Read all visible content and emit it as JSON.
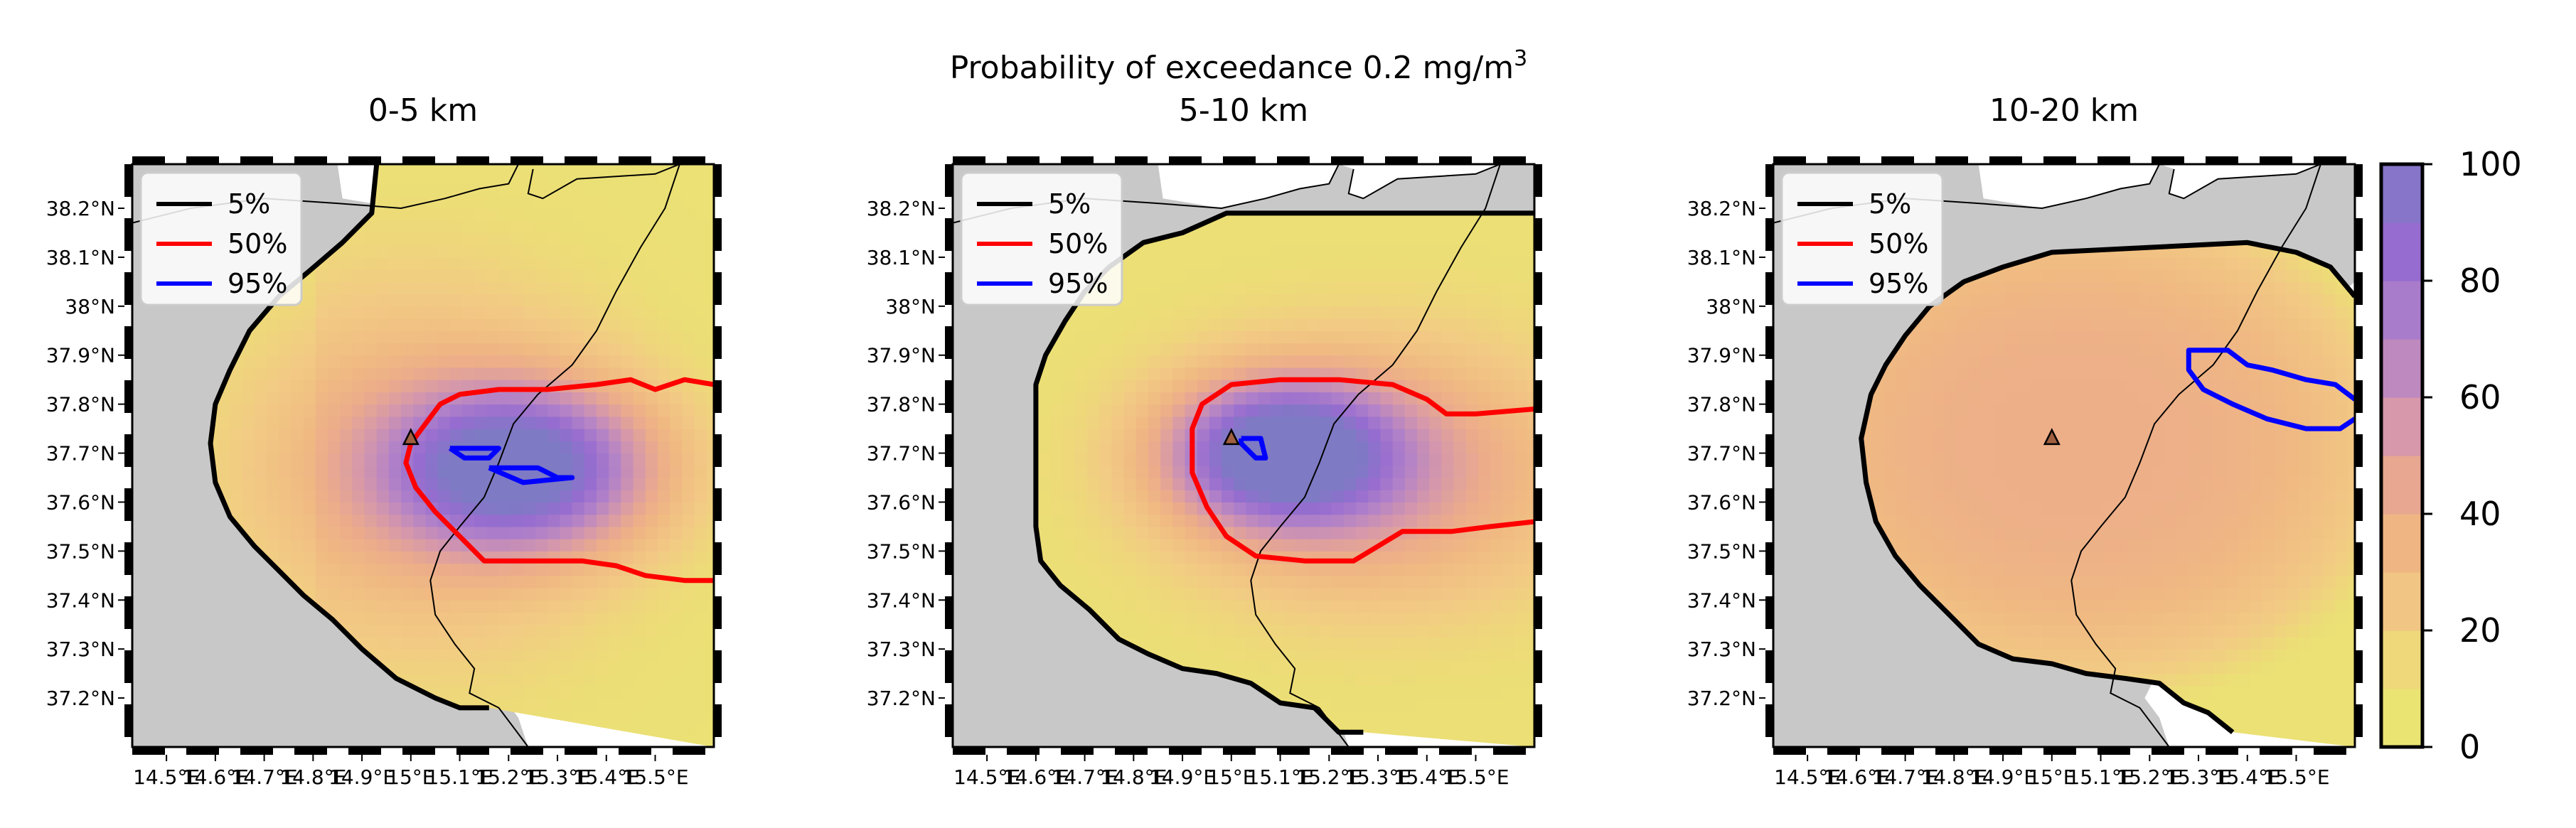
{
  "figure": {
    "suptitle_text": "Probability of exceedance 0.2 mg/m",
    "suptitle_superscript": "3"
  },
  "chart_data": [
    {
      "type": "heatmap",
      "title": "0-5 km",
      "x_ticks": [
        "14.5°E",
        "14.6°E",
        "14.7°E",
        "14.8°E",
        "14.9°E",
        "15°E",
        "15.1°E",
        "15.2°E",
        "15.3°E",
        "15.4°E",
        "15.5°E"
      ],
      "y_ticks": [
        "38.2°N",
        "38.1°N",
        "38°N",
        "37.9°N",
        "37.8°N",
        "37.7°N",
        "37.6°N",
        "37.5°N",
        "37.4°N",
        "37.3°N",
        "37.2°N"
      ],
      "xlim": [
        14.43,
        15.62
      ],
      "ylim": [
        37.1,
        38.29
      ],
      "vent": {
        "lon": 15.0,
        "lat": 37.73
      },
      "peak": {
        "lon": 15.18,
        "lat": 37.68,
        "value": 90
      },
      "legend": [
        "5%",
        "50%",
        "95%"
      ],
      "contours": {
        "5%": [
          [
            14.93,
            38.29
          ],
          [
            14.92,
            38.19
          ],
          [
            14.86,
            38.13
          ],
          [
            14.79,
            38.07
          ],
          [
            14.73,
            38.02
          ],
          [
            14.67,
            37.95
          ],
          [
            14.63,
            37.87
          ],
          [
            14.6,
            37.8
          ],
          [
            14.59,
            37.72
          ],
          [
            14.6,
            37.64
          ],
          [
            14.63,
            37.57
          ],
          [
            14.68,
            37.51
          ],
          [
            14.73,
            37.46
          ],
          [
            14.78,
            37.41
          ],
          [
            14.84,
            37.36
          ],
          [
            14.9,
            37.3
          ],
          [
            14.97,
            37.24
          ],
          [
            15.05,
            37.2
          ],
          [
            15.1,
            37.18
          ],
          [
            15.16,
            37.18
          ]
        ],
        "50%": [
          [
            15.62,
            37.84
          ],
          [
            15.56,
            37.85
          ],
          [
            15.5,
            37.83
          ],
          [
            15.45,
            37.85
          ],
          [
            15.38,
            37.84
          ],
          [
            15.28,
            37.83
          ],
          [
            15.18,
            37.83
          ],
          [
            15.1,
            37.82
          ],
          [
            15.06,
            37.8
          ],
          [
            15.03,
            37.76
          ],
          [
            15.0,
            37.72
          ],
          [
            14.99,
            37.68
          ],
          [
            15.01,
            37.63
          ],
          [
            15.05,
            37.58
          ],
          [
            15.1,
            37.53
          ],
          [
            15.15,
            37.48
          ],
          [
            15.25,
            37.48
          ],
          [
            15.35,
            37.48
          ],
          [
            15.42,
            37.47
          ],
          [
            15.48,
            37.45
          ],
          [
            15.56,
            37.44
          ],
          [
            15.62,
            37.44
          ]
        ],
        "95%": [
          [
            [
              15.08,
              37.71
            ],
            [
              15.18,
              37.71
            ],
            [
              15.16,
              37.69
            ],
            [
              15.11,
              37.69
            ],
            [
              15.08,
              37.71
            ]
          ],
          [
            [
              15.16,
              37.67
            ],
            [
              15.26,
              37.67
            ],
            [
              15.3,
              37.65
            ],
            [
              15.33,
              37.65
            ],
            [
              15.23,
              37.64
            ],
            [
              15.16,
              37.67
            ]
          ]
        ]
      }
    },
    {
      "type": "heatmap",
      "title": "5-10 km",
      "x_ticks": [
        "14.5°E",
        "14.6°E",
        "14.7°E",
        "14.8°E",
        "14.9°E",
        "15°E",
        "15.1°E",
        "15.2°E",
        "15.3°E",
        "15.4°E",
        "15.5°E"
      ],
      "y_ticks": [
        "38.2°N",
        "38.1°N",
        "38°N",
        "37.9°N",
        "37.8°N",
        "37.7°N",
        "37.6°N",
        "37.5°N",
        "37.4°N",
        "37.3°N",
        "37.2°N"
      ],
      "xlim": [
        14.43,
        15.62
      ],
      "ylim": [
        37.1,
        38.29
      ],
      "vent": {
        "lon": 15.0,
        "lat": 37.73
      },
      "peak": {
        "lon": 15.1,
        "lat": 37.72,
        "value": 92
      },
      "legend": [
        "5%",
        "50%",
        "95%"
      ],
      "contours": {
        "5%": [
          [
            15.62,
            38.19
          ],
          [
            15.4,
            38.19
          ],
          [
            15.2,
            38.19
          ],
          [
            14.99,
            38.19
          ],
          [
            14.9,
            38.15
          ],
          [
            14.82,
            38.13
          ],
          [
            14.75,
            38.08
          ],
          [
            14.7,
            38.03
          ],
          [
            14.66,
            37.97
          ],
          [
            14.62,
            37.9
          ],
          [
            14.6,
            37.84
          ],
          [
            14.6,
            37.7
          ],
          [
            14.6,
            37.55
          ],
          [
            14.61,
            37.48
          ],
          [
            14.65,
            37.43
          ],
          [
            14.71,
            37.38
          ],
          [
            14.77,
            37.32
          ],
          [
            14.83,
            37.29
          ],
          [
            14.9,
            37.26
          ],
          [
            14.97,
            37.25
          ],
          [
            15.04,
            37.23
          ],
          [
            15.1,
            37.19
          ],
          [
            15.17,
            37.18
          ],
          [
            15.22,
            37.13
          ],
          [
            15.27,
            37.13
          ]
        ],
        "50%": [
          [
            15.62,
            37.79
          ],
          [
            15.5,
            37.78
          ],
          [
            15.44,
            37.78
          ],
          [
            15.4,
            37.81
          ],
          [
            15.33,
            37.84
          ],
          [
            15.22,
            37.85
          ],
          [
            15.1,
            37.85
          ],
          [
            15.0,
            37.84
          ],
          [
            14.94,
            37.8
          ],
          [
            14.92,
            37.75
          ],
          [
            14.92,
            37.66
          ],
          [
            14.95,
            37.59
          ],
          [
            14.99,
            37.53
          ],
          [
            15.05,
            37.49
          ],
          [
            15.15,
            37.48
          ],
          [
            15.25,
            37.48
          ],
          [
            15.35,
            37.54
          ],
          [
            15.45,
            37.54
          ],
          [
            15.53,
            37.55
          ],
          [
            15.62,
            37.56
          ]
        ],
        "95%": [
          [
            15.02,
            37.73
          ],
          [
            15.06,
            37.73
          ],
          [
            15.07,
            37.69
          ],
          [
            15.05,
            37.69
          ],
          [
            15.02,
            37.72
          ],
          [
            15.02,
            37.73
          ]
        ]
      }
    },
    {
      "type": "heatmap",
      "title": "10-20 km",
      "x_ticks": [
        "14.5°E",
        "14.6°E",
        "14.7°E",
        "14.8°E",
        "14.9°E",
        "15°E",
        "15.1°E",
        "15.2°E",
        "15.3°E",
        "15.4°E",
        "15.5°E"
      ],
      "y_ticks": [
        "38.2°N",
        "38.1°N",
        "38°N",
        "37.9°N",
        "37.8°N",
        "37.7°N",
        "37.6°N",
        "37.5°N",
        "37.4°N",
        "37.3°N",
        "37.2°N"
      ],
      "xlim": [
        14.43,
        15.62
      ],
      "ylim": [
        37.1,
        38.29
      ],
      "vent": {
        "lon": 15.0,
        "lat": 37.73
      },
      "peak": {
        "lon": 15.02,
        "lat": 37.73,
        "value": 40
      },
      "legend": [
        "5%",
        "50%",
        "95%"
      ],
      "contours": {
        "5%": [
          [
            15.62,
            38.02
          ],
          [
            15.57,
            38.08
          ],
          [
            15.5,
            38.11
          ],
          [
            15.4,
            38.13
          ],
          [
            15.2,
            38.12
          ],
          [
            15.0,
            38.11
          ],
          [
            14.9,
            38.08
          ],
          [
            14.82,
            38.05
          ],
          [
            14.75,
            38.0
          ],
          [
            14.7,
            37.94
          ],
          [
            14.66,
            37.88
          ],
          [
            14.63,
            37.82
          ],
          [
            14.61,
            37.73
          ],
          [
            14.62,
            37.64
          ],
          [
            14.64,
            37.56
          ],
          [
            14.68,
            37.49
          ],
          [
            14.73,
            37.43
          ],
          [
            14.79,
            37.37
          ],
          [
            14.85,
            37.31
          ],
          [
            14.92,
            37.28
          ],
          [
            15.0,
            37.27
          ],
          [
            15.07,
            37.25
          ],
          [
            15.15,
            37.24
          ],
          [
            15.22,
            37.23
          ],
          [
            15.27,
            37.19
          ],
          [
            15.32,
            37.17
          ],
          [
            15.37,
            37.13
          ]
        ],
        "95%": [
          [
            15.62,
            37.81
          ],
          [
            15.58,
            37.84
          ],
          [
            15.52,
            37.85
          ],
          [
            15.45,
            37.87
          ],
          [
            15.4,
            37.88
          ],
          [
            15.36,
            37.91
          ],
          [
            15.28,
            37.91
          ],
          [
            15.28,
            37.87
          ],
          [
            15.31,
            37.83
          ],
          [
            15.37,
            37.8
          ],
          [
            15.44,
            37.77
          ],
          [
            15.52,
            37.75
          ],
          [
            15.59,
            37.75
          ],
          [
            15.62,
            37.77
          ]
        ]
      }
    }
  ],
  "colorbar": {
    "ticks": [
      "0",
      "20",
      "40",
      "60",
      "80",
      "100"
    ],
    "range": [
      0,
      100
    ]
  },
  "colors": {
    "contour_5": "#000000",
    "contour_50": "#ff0000",
    "contour_95": "#0000ff",
    "land": "#c8c8c8",
    "sea": "#ffffff"
  }
}
